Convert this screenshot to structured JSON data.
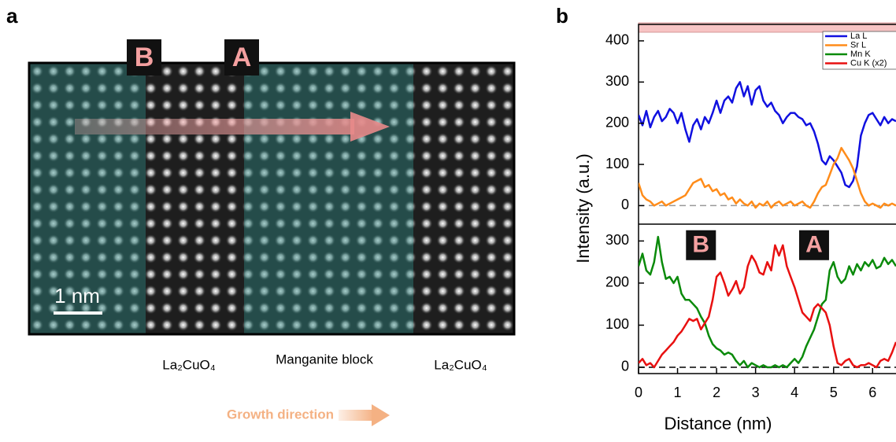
{
  "panel_a": {
    "label": "a",
    "markers": [
      "B",
      "A"
    ],
    "scale_bar": "1 nm",
    "regions": [
      "La₂CuO₄",
      "Manganite block",
      "La₂CuO₄"
    ],
    "growth": "Growth direction"
  },
  "panel_b": {
    "label": "b"
  },
  "chart_data": [
    {
      "type": "line",
      "ylabel": "Intensity (a.u.)",
      "legend": "upper right",
      "xlim": [
        0,
        6.6
      ],
      "ylim": [
        -45,
        440
      ],
      "yticks": [
        0,
        100,
        200,
        300,
        400
      ],
      "x": [
        0,
        0.1,
        0.2,
        0.3,
        0.4,
        0.5,
        0.6,
        0.7,
        0.8,
        0.9,
        1,
        1.1,
        1.2,
        1.3,
        1.4,
        1.5,
        1.6,
        1.7,
        1.8,
        1.9,
        2,
        2.1,
        2.2,
        2.3,
        2.4,
        2.5,
        2.6,
        2.7,
        2.8,
        2.9,
        3,
        3.1,
        3.2,
        3.3,
        3.4,
        3.5,
        3.6,
        3.7,
        3.8,
        3.9,
        4,
        4.1,
        4.2,
        4.3,
        4.4,
        4.5,
        4.6,
        4.7,
        4.8,
        4.9,
        5,
        5.1,
        5.2,
        5.3,
        5.4,
        5.5,
        5.6,
        5.7,
        5.8,
        5.9,
        6,
        6.1,
        6.2,
        6.3,
        6.4,
        6.5,
        6.6
      ],
      "series": [
        {
          "name": "La L",
          "color": "#1010e0",
          "values": [
            220,
            195,
            230,
            190,
            215,
            230,
            205,
            215,
            235,
            225,
            200,
            225,
            185,
            155,
            195,
            210,
            185,
            215,
            200,
            225,
            255,
            225,
            255,
            265,
            250,
            285,
            300,
            265,
            290,
            245,
            280,
            290,
            255,
            240,
            250,
            230,
            220,
            200,
            215,
            225,
            225,
            215,
            210,
            195,
            200,
            180,
            150,
            110,
            100,
            120,
            110,
            95,
            80,
            50,
            45,
            60,
            95,
            170,
            200,
            220,
            225,
            210,
            195,
            215,
            200,
            210,
            205
          ]
        },
        {
          "name": "Sr L",
          "color": "#ff8c1a",
          "values": [
            55,
            25,
            15,
            10,
            0,
            5,
            10,
            0,
            5,
            10,
            15,
            20,
            25,
            40,
            55,
            60,
            65,
            45,
            50,
            35,
            40,
            25,
            30,
            15,
            20,
            5,
            15,
            5,
            0,
            10,
            -5,
            5,
            0,
            10,
            -5,
            5,
            10,
            0,
            5,
            10,
            0,
            5,
            10,
            0,
            -5,
            10,
            30,
            45,
            50,
            75,
            100,
            115,
            140,
            125,
            110,
            90,
            60,
            30,
            10,
            0,
            5,
            0,
            -5,
            5,
            0,
            5,
            0
          ]
        }
      ]
    },
    {
      "type": "line",
      "xlabel": "Distance (nm)",
      "annotations": [
        "B",
        "A"
      ],
      "xlim": [
        0,
        6.6
      ],
      "ylim": [
        -15,
        340
      ],
      "xticks": [
        0,
        1,
        2,
        3,
        4,
        5,
        6
      ],
      "yticks": [
        0,
        100,
        200,
        300
      ],
      "x": [
        0,
        0.1,
        0.2,
        0.3,
        0.4,
        0.5,
        0.6,
        0.7,
        0.8,
        0.9,
        1,
        1.1,
        1.2,
        1.3,
        1.4,
        1.5,
        1.6,
        1.7,
        1.8,
        1.9,
        2,
        2.1,
        2.2,
        2.3,
        2.4,
        2.5,
        2.6,
        2.7,
        2.8,
        2.9,
        3,
        3.1,
        3.2,
        3.3,
        3.4,
        3.5,
        3.6,
        3.7,
        3.8,
        3.9,
        4,
        4.1,
        4.2,
        4.3,
        4.4,
        4.5,
        4.6,
        4.7,
        4.8,
        4.9,
        5,
        5.1,
        5.2,
        5.3,
        5.4,
        5.5,
        5.6,
        5.7,
        5.8,
        5.9,
        6,
        6.1,
        6.2,
        6.3,
        6.4,
        6.5,
        6.6
      ],
      "series": [
        {
          "name": "Mn K",
          "color": "#0a8a0a",
          "values": [
            240,
            270,
            230,
            220,
            250,
            310,
            250,
            210,
            215,
            200,
            215,
            175,
            160,
            160,
            150,
            140,
            120,
            105,
            75,
            55,
            45,
            40,
            30,
            35,
            30,
            15,
            5,
            15,
            0,
            10,
            5,
            0,
            5,
            0,
            0,
            5,
            0,
            5,
            0,
            10,
            20,
            10,
            25,
            50,
            70,
            90,
            120,
            150,
            160,
            230,
            250,
            215,
            200,
            210,
            240,
            220,
            245,
            230,
            250,
            240,
            255,
            235,
            240,
            260,
            245,
            255,
            240
          ]
        },
        {
          "name": "Cu K (x2)",
          "color": "#e81010",
          "values": [
            10,
            20,
            5,
            10,
            0,
            15,
            30,
            40,
            50,
            60,
            75,
            85,
            100,
            115,
            110,
            115,
            90,
            105,
            120,
            160,
            215,
            225,
            200,
            170,
            185,
            205,
            175,
            190,
            240,
            265,
            250,
            225,
            220,
            250,
            230,
            290,
            265,
            290,
            240,
            215,
            190,
            160,
            130,
            120,
            110,
            140,
            150,
            140,
            130,
            100,
            50,
            10,
            5,
            15,
            20,
            5,
            0,
            5,
            5,
            10,
            5,
            0,
            15,
            20,
            15,
            35,
            60
          ]
        }
      ]
    }
  ]
}
